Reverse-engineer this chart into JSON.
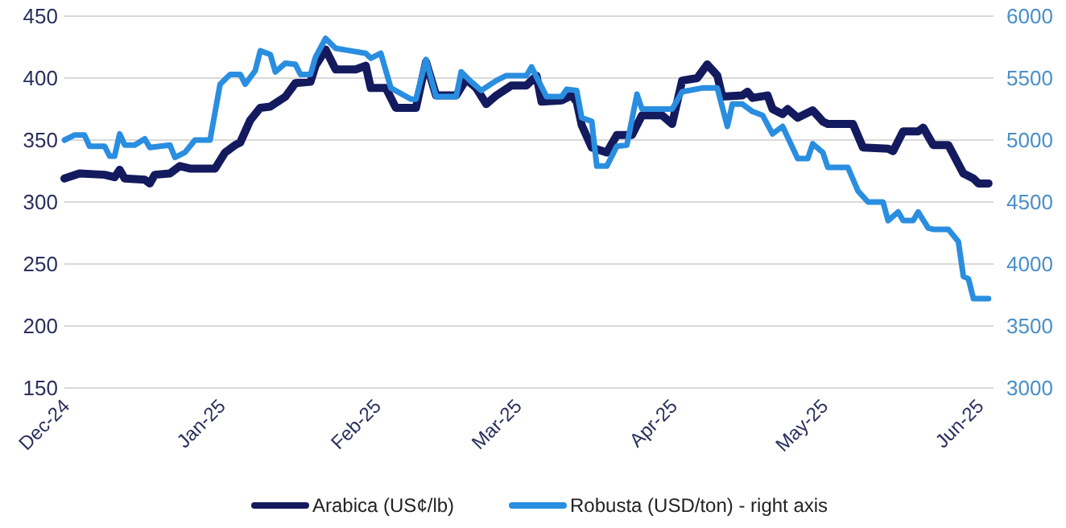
{
  "chart_data": {
    "type": "line",
    "legend": "bottom",
    "grid": "y",
    "line_style": "solid",
    "marker": "none",
    "xlim": [
      "2024-12-01",
      "2025-06-04"
    ],
    "xticks": [
      {
        "value": "2024-12-01",
        "label": "Dec-24"
      },
      {
        "value": "2025-01-01",
        "label": "Jan-25"
      },
      {
        "value": "2025-02-01",
        "label": "Feb-25"
      },
      {
        "value": "2025-03-01",
        "label": "Mar-25"
      },
      {
        "value": "2025-04-01",
        "label": "Apr-25"
      },
      {
        "value": "2025-05-01",
        "label": "May-25"
      },
      {
        "value": "2025-06-01",
        "label": "Jun-25"
      }
    ],
    "ylim": [
      150,
      450
    ],
    "yticks": [
      150,
      200,
      250,
      300,
      350,
      400,
      450
    ],
    "y2lim": [
      3000,
      6000
    ],
    "y2ticks": [
      3000,
      3500,
      4000,
      4500,
      5000,
      5500,
      6000
    ],
    "series": [
      {
        "name": "Arabica (US¢/lb)",
        "color": "#141a5e",
        "x": [
          "2024-12-01",
          "2024-12-04",
          "2024-12-09",
          "2024-12-11",
          "2024-12-12",
          "2024-12-13",
          "2024-12-17",
          "2024-12-18",
          "2024-12-19",
          "2024-12-22",
          "2024-12-24",
          "2024-12-26",
          "2024-12-31",
          "2025-01-02",
          "2025-01-04",
          "2025-01-05",
          "2025-01-07",
          "2025-01-09",
          "2025-01-11",
          "2025-01-14",
          "2025-01-16",
          "2025-01-19",
          "2025-01-20",
          "2025-01-22",
          "2025-01-24",
          "2025-01-28",
          "2025-01-30",
          "2025-01-31",
          "2025-02-03",
          "2025-02-05",
          "2025-02-09",
          "2025-02-11",
          "2025-02-13",
          "2025-02-17",
          "2025-02-19",
          "2025-02-21",
          "2025-02-23",
          "2025-02-25",
          "2025-02-28",
          "2025-03-03",
          "2025-03-05",
          "2025-03-06",
          "2025-03-10",
          "2025-03-12",
          "2025-03-13",
          "2025-03-14",
          "2025-03-16",
          "2025-03-19",
          "2025-03-21",
          "2025-03-24",
          "2025-03-26",
          "2025-03-30",
          "2025-04-01",
          "2025-04-03",
          "2025-04-06",
          "2025-04-08",
          "2025-04-10",
          "2025-04-11",
          "2025-04-15",
          "2025-04-16",
          "2025-04-17",
          "2025-04-20",
          "2025-04-21",
          "2025-04-23",
          "2025-04-24",
          "2025-04-26",
          "2025-04-29",
          "2025-05-01",
          "2025-05-02",
          "2025-05-07",
          "2025-05-09",
          "2025-05-14",
          "2025-05-15",
          "2025-05-17",
          "2025-05-20",
          "2025-05-21",
          "2025-05-23",
          "2025-05-26",
          "2025-05-29",
          "2025-05-31",
          "2025-06-01",
          "2025-06-03"
        ],
        "values": [
          319,
          323,
          322,
          320,
          326,
          319,
          318,
          315,
          322,
          323,
          329,
          327,
          327,
          340,
          346,
          348,
          366,
          376,
          377,
          385,
          396,
          397,
          410,
          423,
          407,
          407,
          410,
          392,
          392,
          376,
          376,
          413,
          386,
          386,
          399,
          392,
          379,
          386,
          394,
          394,
          402,
          381,
          382,
          386,
          381,
          362,
          344,
          340,
          354,
          354,
          370,
          370,
          363,
          398,
          400,
          411,
          402,
          385,
          386,
          389,
          384,
          386,
          375,
          371,
          375,
          368,
          374,
          365,
          363,
          363,
          344,
          343,
          341,
          357,
          357,
          360,
          346,
          346,
          323,
          319,
          315,
          315
        ]
      },
      {
        "name": "Robusta (USD/ton) - right axis",
        "color": "#2a8ee0",
        "axis": "y2",
        "x": [
          "2024-12-01",
          "2024-12-03",
          "2024-12-05",
          "2024-12-06",
          "2024-12-09",
          "2024-12-10",
          "2024-12-11",
          "2024-12-12",
          "2024-12-13",
          "2024-12-15",
          "2024-12-17",
          "2024-12-18",
          "2024-12-22",
          "2024-12-23",
          "2024-12-25",
          "2024-12-27",
          "2024-12-30",
          "2025-01-01",
          "2025-01-02",
          "2025-01-03",
          "2025-01-05",
          "2025-01-06",
          "2025-01-08",
          "2025-01-09",
          "2025-01-11",
          "2025-01-12",
          "2025-01-14",
          "2025-01-16",
          "2025-01-17",
          "2025-01-19",
          "2025-01-20",
          "2025-01-22",
          "2025-01-24",
          "2025-01-27",
          "2025-01-30",
          "2025-01-31",
          "2025-02-02",
          "2025-02-04",
          "2025-02-08",
          "2025-02-09",
          "2025-02-11",
          "2025-02-13",
          "2025-02-17",
          "2025-02-18",
          "2025-02-20",
          "2025-02-22",
          "2025-02-25",
          "2025-02-27",
          "2025-03-03",
          "2025-03-04",
          "2025-03-07",
          "2025-03-10",
          "2025-03-11",
          "2025-03-13",
          "2025-03-14",
          "2025-03-16",
          "2025-03-17",
          "2025-03-19",
          "2025-03-21",
          "2025-03-23",
          "2025-03-25",
          "2025-03-26",
          "2025-04-01",
          "2025-04-03",
          "2025-04-07",
          "2025-04-10",
          "2025-04-12",
          "2025-04-13",
          "2025-04-15",
          "2025-04-17",
          "2025-04-19",
          "2025-04-21",
          "2025-04-23",
          "2025-04-26",
          "2025-04-28",
          "2025-04-29",
          "2025-05-01",
          "2025-05-02",
          "2025-05-06",
          "2025-05-08",
          "2025-05-10",
          "2025-05-13",
          "2025-05-14",
          "2025-05-16",
          "2025-05-17",
          "2025-05-19",
          "2025-05-20",
          "2025-05-22",
          "2025-05-23",
          "2025-05-26",
          "2025-05-28",
          "2025-05-29",
          "2025-05-30",
          "2025-05-31",
          "2025-06-03"
        ],
        "values": [
          5000,
          5040,
          5040,
          4950,
          4950,
          4870,
          4870,
          5050,
          4960,
          4960,
          5010,
          4940,
          4960,
          4860,
          4900,
          5000,
          5000,
          5450,
          5490,
          5530,
          5530,
          5450,
          5560,
          5720,
          5690,
          5550,
          5620,
          5610,
          5530,
          5530,
          5670,
          5820,
          5740,
          5720,
          5700,
          5660,
          5700,
          5420,
          5330,
          5330,
          5650,
          5350,
          5350,
          5550,
          5470,
          5400,
          5480,
          5520,
          5520,
          5590,
          5350,
          5350,
          5410,
          5400,
          5180,
          5150,
          4790,
          4790,
          4950,
          4960,
          5370,
          5250,
          5250,
          5390,
          5420,
          5420,
          5110,
          5290,
          5290,
          5230,
          5200,
          5050,
          5110,
          4850,
          4850,
          4970,
          4900,
          4780,
          4780,
          4590,
          4500,
          4500,
          4350,
          4420,
          4350,
          4350,
          4420,
          4290,
          4280,
          4280,
          4180,
          3900,
          3880,
          3720,
          3720
        ]
      }
    ]
  }
}
